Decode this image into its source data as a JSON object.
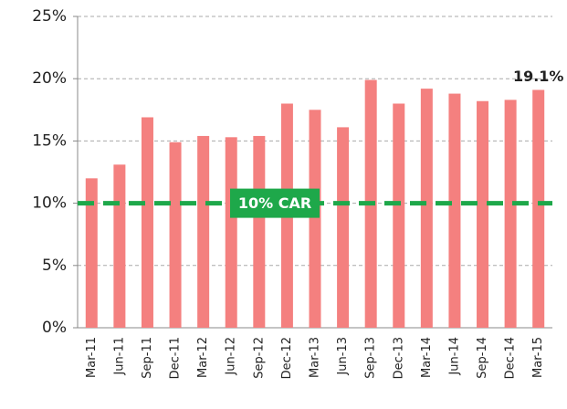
{
  "chart_data": {
    "type": "bar",
    "categories": [
      "Mar-11",
      "Jun-11",
      "Sep-11",
      "Dec-11",
      "Mar-12",
      "Jun-12",
      "Sep-12",
      "Dec-12",
      "Mar-13",
      "Jun-13",
      "Sep-13",
      "Dec-13",
      "Mar-14",
      "Jun-14",
      "Sep-14",
      "Dec-14",
      "Mar-15"
    ],
    "values": [
      12,
      13.1,
      16.9,
      14.9,
      15.4,
      15.3,
      15.4,
      18,
      17.5,
      16.1,
      19.9,
      18,
      19.2,
      18.8,
      18.2,
      18.3,
      19.1
    ],
    "value_labels": [
      null,
      null,
      null,
      null,
      null,
      null,
      null,
      null,
      null,
      null,
      null,
      null,
      null,
      null,
      null,
      null,
      "19.1%"
    ],
    "color": "#f4807f",
    "ylim": [
      0,
      25
    ],
    "yticks": [
      {
        "value": 0,
        "label": "0%"
      },
      {
        "value": 5,
        "label": "5%"
      },
      {
        "value": 10,
        "label": "10%"
      },
      {
        "value": 15,
        "label": "15%"
      },
      {
        "value": 20,
        "label": "20%"
      },
      {
        "value": 25,
        "label": "25%"
      }
    ],
    "grid": true,
    "reference_lines": [
      {
        "value": 10,
        "label": "10% CAR",
        "color": "#1ea84a"
      }
    ]
  }
}
